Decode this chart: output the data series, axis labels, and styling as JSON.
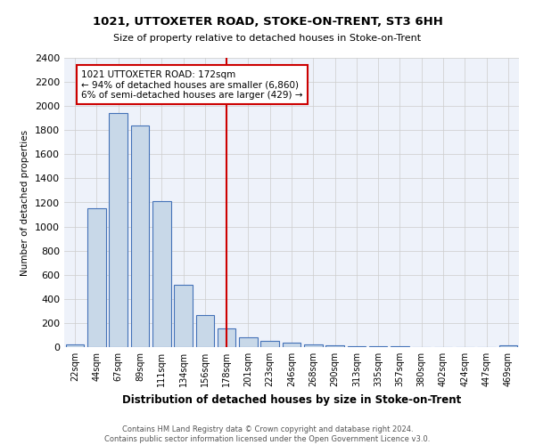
{
  "title": "1021, UTTOXETER ROAD, STOKE-ON-TRENT, ST3 6HH",
  "subtitle": "Size of property relative to detached houses in Stoke-on-Trent",
  "xlabel": "Distribution of detached houses by size in Stoke-on-Trent",
  "ylabel": "Number of detached properties",
  "footer_line1": "Contains HM Land Registry data © Crown copyright and database right 2024.",
  "footer_line2": "Contains public sector information licensed under the Open Government Licence v3.0.",
  "bar_labels": [
    "22sqm",
    "44sqm",
    "67sqm",
    "89sqm",
    "111sqm",
    "134sqm",
    "156sqm",
    "178sqm",
    "201sqm",
    "223sqm",
    "246sqm",
    "268sqm",
    "290sqm",
    "313sqm",
    "335sqm",
    "357sqm",
    "380sqm",
    "402sqm",
    "424sqm",
    "447sqm",
    "469sqm"
  ],
  "bar_values": [
    25,
    1150,
    1940,
    1840,
    1210,
    520,
    265,
    155,
    80,
    55,
    40,
    20,
    15,
    10,
    5,
    5,
    2,
    2,
    1,
    1,
    15
  ],
  "bar_color": "#c8d8e8",
  "bar_edge_color": "#4472b8",
  "vline_x": 7,
  "vline_color": "#cc0000",
  "ylim": [
    0,
    2400
  ],
  "yticks": [
    0,
    200,
    400,
    600,
    800,
    1000,
    1200,
    1400,
    1600,
    1800,
    2000,
    2200,
    2400
  ],
  "annotation_text": "1021 UTTOXETER ROAD: 172sqm\n← 94% of detached houses are smaller (6,860)\n6% of semi-detached houses are larger (429) →",
  "annotation_box_color": "#ffffff",
  "annotation_box_edge": "#cc0000",
  "bg_color": "#eef2fa",
  "grid_color": "#cccccc"
}
